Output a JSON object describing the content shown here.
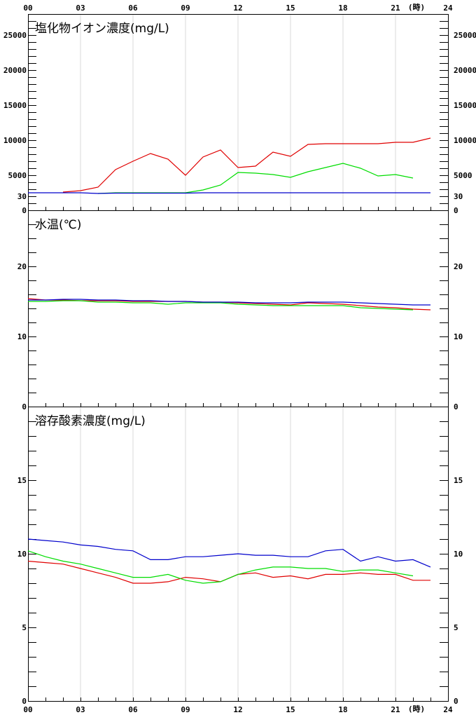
{
  "x_axis": {
    "ticks": [
      "00",
      "03",
      "06",
      "09",
      "12",
      "15",
      "18",
      "21",
      "24"
    ],
    "unit": "(時)"
  },
  "chart_data": [
    {
      "type": "line",
      "title": "塩化物イオン濃度(mg/L)",
      "x": [
        0,
        1,
        2,
        3,
        4,
        5,
        6,
        7,
        8,
        9,
        10,
        11,
        12,
        13,
        14,
        15,
        16,
        17,
        18,
        19,
        20,
        21,
        22,
        23
      ],
      "ylim": [
        0,
        28000
      ],
      "yticks": [
        0,
        5000,
        10000,
        15000,
        20000,
        25000
      ],
      "grid_vertical": true,
      "series": [
        {
          "color": "#e00000",
          "values": [
            null,
            null,
            2600,
            2800,
            3300,
            5800,
            7000,
            8100,
            7300,
            5000,
            7600,
            8600,
            6100,
            6300,
            8300,
            7700,
            9400,
            9500,
            9500,
            9500,
            9500,
            9700,
            9700,
            10300
          ]
        },
        {
          "color": "#00dd00",
          "values": [
            null,
            null,
            null,
            null,
            2400,
            2500,
            2500,
            2500,
            2500,
            2500,
            2900,
            3600,
            5400,
            5300,
            5100,
            4700,
            5500,
            6100,
            6700,
            6000,
            4900,
            5100,
            4600,
            null
          ]
        },
        {
          "color": "#0000cc",
          "values": [
            2500,
            2500,
            2500,
            2500,
            2400,
            2450,
            2450,
            2450,
            2450,
            2450,
            2500,
            2500,
            2500,
            2500,
            2500,
            2500,
            2500,
            2500,
            2500,
            2500,
            2500,
            2500,
            2500,
            2500
          ]
        }
      ]
    },
    {
      "type": "line",
      "title": "水温(℃)",
      "x": [
        0,
        1,
        2,
        3,
        4,
        5,
        6,
        7,
        8,
        9,
        10,
        11,
        12,
        13,
        14,
        15,
        16,
        17,
        18,
        19,
        20,
        21,
        22,
        23
      ],
      "ylim": [
        0,
        28
      ],
      "yticks": [
        0,
        10,
        20,
        30
      ],
      "grid_vertical": false,
      "series": [
        {
          "color": "#e00000",
          "values": [
            15.4,
            15.2,
            15.2,
            15.1,
            15.1,
            15.1,
            15.0,
            15.0,
            15.0,
            15.0,
            14.9,
            14.9,
            14.8,
            14.7,
            14.6,
            14.5,
            14.8,
            14.7,
            14.6,
            14.4,
            14.2,
            14.1,
            13.9,
            13.8
          ]
        },
        {
          "color": "#00dd00",
          "values": [
            15.0,
            15.0,
            15.1,
            15.1,
            14.9,
            14.9,
            14.8,
            14.8,
            14.6,
            14.8,
            14.8,
            14.8,
            14.6,
            14.5,
            14.4,
            14.4,
            14.4,
            14.4,
            14.4,
            14.1,
            14.0,
            13.9,
            13.8,
            null
          ]
        },
        {
          "color": "#0000cc",
          "values": [
            15.2,
            15.2,
            15.3,
            15.3,
            15.2,
            15.2,
            15.1,
            15.1,
            15.0,
            15.0,
            14.9,
            14.9,
            14.9,
            14.8,
            14.8,
            14.8,
            14.9,
            14.9,
            14.9,
            14.8,
            14.7,
            14.6,
            14.5,
            14.5
          ]
        }
      ]
    },
    {
      "type": "line",
      "title": "溶存酸素濃度(mg/L)",
      "x": [
        0,
        1,
        2,
        3,
        4,
        5,
        6,
        7,
        8,
        9,
        10,
        11,
        12,
        13,
        14,
        15,
        16,
        17,
        18,
        19,
        20,
        21,
        22,
        23
      ],
      "ylim": [
        0,
        20
      ],
      "yticks": [
        0,
        5,
        10,
        15
      ],
      "grid_vertical": true,
      "series": [
        {
          "color": "#e00000",
          "values": [
            9.5,
            9.4,
            9.3,
            9.0,
            8.7,
            8.4,
            8.0,
            8.0,
            8.1,
            8.4,
            8.3,
            8.1,
            8.6,
            8.7,
            8.4,
            8.5,
            8.3,
            8.6,
            8.6,
            8.7,
            8.6,
            8.6,
            8.2,
            8.2
          ]
        },
        {
          "color": "#00dd00",
          "values": [
            10.2,
            9.8,
            9.5,
            9.3,
            9.0,
            8.7,
            8.4,
            8.4,
            8.6,
            8.2,
            8.0,
            8.1,
            8.6,
            8.9,
            9.1,
            9.1,
            9.0,
            9.0,
            8.8,
            8.9,
            8.9,
            8.7,
            8.5,
            null
          ]
        },
        {
          "color": "#0000cc",
          "values": [
            11.0,
            10.9,
            10.8,
            10.6,
            10.5,
            10.3,
            10.2,
            9.6,
            9.6,
            9.8,
            9.8,
            9.9,
            10.0,
            9.9,
            9.9,
            9.8,
            9.8,
            10.2,
            10.3,
            9.5,
            9.8,
            9.5,
            9.6,
            9.1
          ]
        }
      ]
    }
  ]
}
